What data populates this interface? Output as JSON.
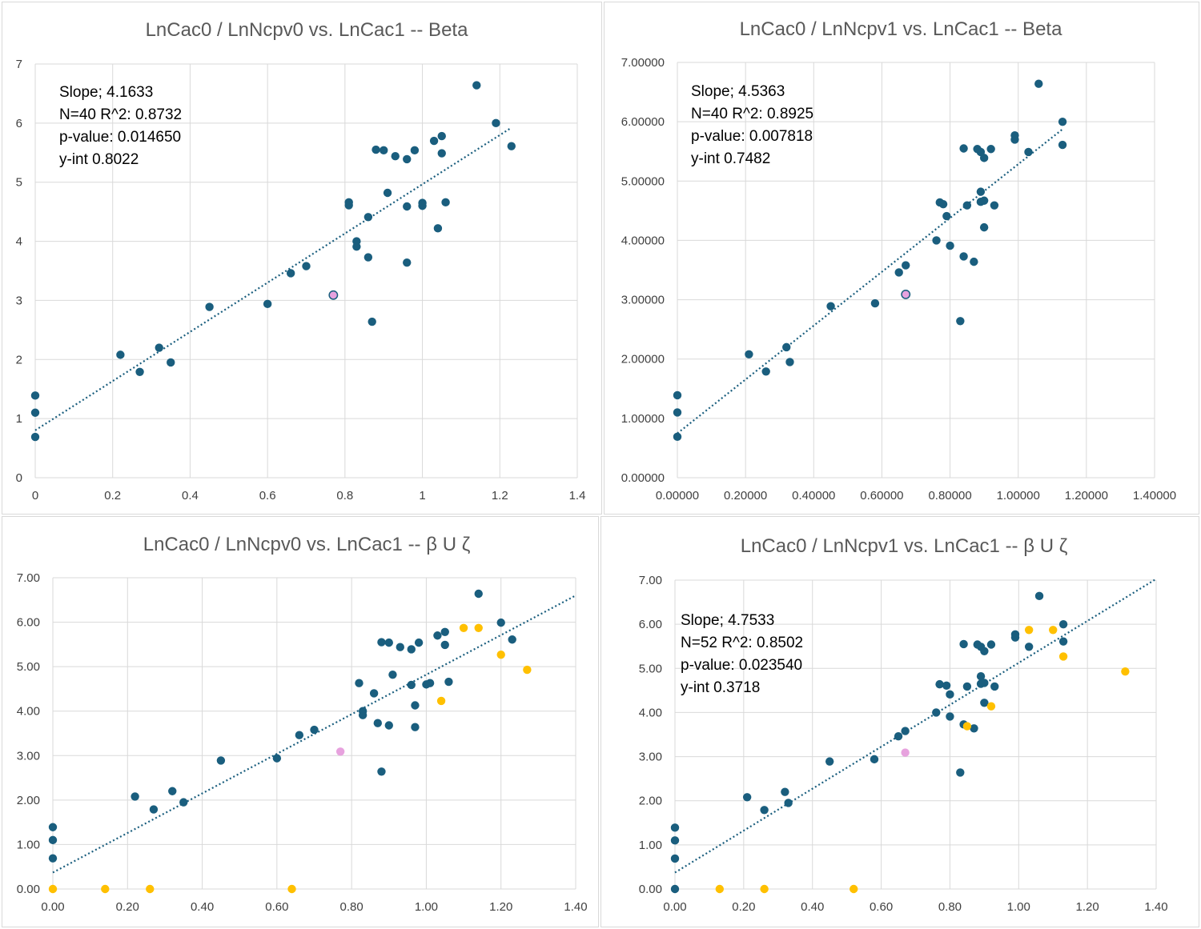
{
  "colors": {
    "main": "#1a5e7e",
    "excluded": "#ffc000",
    "highlight": "#e7a2de",
    "trend": "#1a5e7e",
    "grid": "#d9d9d9"
  },
  "chart_data": [
    {
      "type": "scatter",
      "title": "LnCac0 / LnNcpv0 vs. LnCac1 -- Beta",
      "xlim": [
        0,
        1.4
      ],
      "ylim": [
        0,
        7
      ],
      "x_ticks": [
        "0",
        "0.2",
        "0.4",
        "0.6",
        "0.8",
        "1",
        "1.2",
        "1.4"
      ],
      "y_ticks": [
        "0",
        "1",
        "2",
        "3",
        "4",
        "5",
        "6",
        "7"
      ],
      "grid": true,
      "annotations": [
        "Slope; 4.1633",
        "N=40 R^2: 0.8732",
        "p-value: 0.014650",
        "y-int 0.8022"
      ],
      "trendline": {
        "intercept": 0.8022,
        "slope": 4.1633,
        "x_range": [
          0,
          1.23
        ]
      },
      "series": [
        {
          "points": [
            [
              0,
              0.69
            ],
            [
              0,
              1.1
            ],
            [
              0,
              1.39
            ],
            [
              0.22,
              2.08
            ],
            [
              0.27,
              1.79
            ],
            [
              0.32,
              2.2
            ],
            [
              0.35,
              1.95
            ],
            [
              0.45,
              2.89
            ],
            [
              0.6,
              2.94
            ],
            [
              0.66,
              3.46
            ],
            [
              0.7,
              3.58
            ],
            [
              0.81,
              4.66
            ],
            [
              0.81,
              4.61
            ],
            [
              0.83,
              4.0
            ],
            [
              0.83,
              3.91
            ],
            [
              0.86,
              4.41
            ],
            [
              0.86,
              3.73
            ],
            [
              0.87,
              2.64
            ],
            [
              0.88,
              5.55
            ],
            [
              0.9,
              5.54
            ],
            [
              0.91,
              4.82
            ],
            [
              0.93,
              5.44
            ],
            [
              0.96,
              5.39
            ],
            [
              0.96,
              4.59
            ],
            [
              0.96,
              3.64
            ],
            [
              0.98,
              5.54
            ],
            [
              1.0,
              4.6
            ],
            [
              1.0,
              4.65
            ],
            [
              1.03,
              5.7
            ],
            [
              1.04,
              4.22
            ],
            [
              1.05,
              5.49
            ],
            [
              1.05,
              5.78
            ],
            [
              1.06,
              4.66
            ],
            [
              1.14,
              6.64
            ],
            [
              1.19,
              6.0
            ],
            [
              1.23,
              5.61
            ]
          ]
        },
        {
          "points": [
            [
              0.77,
              3.09
            ]
          ]
        }
      ]
    },
    {
      "type": "scatter",
      "title": "LnCac0 / LnNcpv1 vs. LnCac1 -- Beta",
      "xlim": [
        0,
        1.4
      ],
      "ylim": [
        0,
        7
      ],
      "x_ticks": [
        "0.00000",
        "0.20000",
        "0.40000",
        "0.60000",
        "0.80000",
        "1.00000",
        "1.20000",
        "1.40000"
      ],
      "y_ticks": [
        "0.00000",
        "1.00000",
        "2.00000",
        "3.00000",
        "4.00000",
        "5.00000",
        "6.00000",
        "7.00000"
      ],
      "grid": true,
      "annotations": [
        "Slope; 4.5363",
        "N=40 R^2: 0.8925",
        "p-value: 0.007818",
        "y-int 0.7482"
      ],
      "trendline": {
        "intercept": 0.7482,
        "slope": 4.5363,
        "x_range": [
          0,
          1.13
        ]
      },
      "series": [
        {
          "points": [
            [
              0,
              0.69
            ],
            [
              0,
              1.1
            ],
            [
              0,
              1.39
            ],
            [
              0.21,
              2.08
            ],
            [
              0.26,
              1.79
            ],
            [
              0.32,
              2.2
            ],
            [
              0.33,
              1.95
            ],
            [
              0.45,
              2.89
            ],
            [
              0.58,
              2.94
            ],
            [
              0.65,
              3.46
            ],
            [
              0.67,
              3.58
            ],
            [
              0.76,
              4.0
            ],
            [
              0.77,
              4.64
            ],
            [
              0.78,
              4.61
            ],
            [
              0.79,
              4.41
            ],
            [
              0.8,
              3.91
            ],
            [
              0.83,
              2.64
            ],
            [
              0.84,
              3.73
            ],
            [
              0.84,
              5.55
            ],
            [
              0.85,
              4.59
            ],
            [
              0.87,
              3.64
            ],
            [
              0.88,
              5.54
            ],
            [
              0.89,
              5.49
            ],
            [
              0.89,
              4.82
            ],
            [
              0.89,
              4.65
            ],
            [
              0.9,
              5.39
            ],
            [
              0.9,
              4.22
            ],
            [
              0.9,
              4.67
            ],
            [
              0.92,
              5.54
            ],
            [
              0.93,
              4.59
            ],
            [
              0.99,
              5.7
            ],
            [
              0.99,
              5.77
            ],
            [
              1.03,
              5.49
            ],
            [
              1.06,
              6.64
            ],
            [
              1.13,
              6.0
            ],
            [
              1.13,
              5.61
            ]
          ]
        },
        {
          "points": [
            [
              0.67,
              3.09
            ]
          ]
        }
      ]
    },
    {
      "type": "scatter",
      "title": "LnCac0 / LnNcpv0 vs. LnCac1 --   β U ζ",
      "xlim": [
        0,
        1.4
      ],
      "ylim": [
        0,
        7
      ],
      "x_ticks": [
        "0.00",
        "0.20",
        "0.40",
        "0.60",
        "0.80",
        "1.00",
        "1.20",
        "1.40"
      ],
      "y_ticks": [
        "0.00",
        "1.00",
        "2.00",
        "3.00",
        "4.00",
        "5.00",
        "6.00",
        "7.00"
      ],
      "grid": true,
      "annotations": [],
      "trendline": {
        "intercept": 0.37,
        "slope": 4.45,
        "x_range": [
          0,
          1.4
        ]
      },
      "series": [
        {
          "points": [
            [
              0,
              0.69
            ],
            [
              0,
              1.1
            ],
            [
              0,
              1.39
            ],
            [
              0.22,
              2.08
            ],
            [
              0.27,
              1.79
            ],
            [
              0.32,
              2.2
            ],
            [
              0.35,
              1.95
            ],
            [
              0.45,
              2.89
            ],
            [
              0.6,
              2.94
            ],
            [
              0.66,
              3.46
            ],
            [
              0.7,
              3.58
            ],
            [
              0.82,
              4.63
            ],
            [
              0.83,
              4.0
            ],
            [
              0.83,
              3.91
            ],
            [
              0.86,
              4.4
            ],
            [
              0.87,
              3.73
            ],
            [
              0.88,
              2.64
            ],
            [
              0.88,
              5.55
            ],
            [
              0.9,
              5.54
            ],
            [
              0.9,
              3.68
            ],
            [
              0.91,
              4.82
            ],
            [
              0.93,
              5.44
            ],
            [
              0.96,
              5.39
            ],
            [
              0.96,
              4.59
            ],
            [
              0.97,
              3.64
            ],
            [
              0.97,
              4.13
            ],
            [
              0.98,
              5.54
            ],
            [
              1.0,
              4.6
            ],
            [
              1.01,
              4.63
            ],
            [
              1.03,
              5.7
            ],
            [
              1.05,
              5.49
            ],
            [
              1.05,
              5.78
            ],
            [
              1.06,
              4.66
            ],
            [
              1.14,
              6.64
            ],
            [
              1.2,
              5.99
            ],
            [
              1.23,
              5.61
            ]
          ]
        },
        {
          "points": [
            [
              0,
              0
            ],
            [
              0.14,
              0
            ],
            [
              0.26,
              0
            ],
            [
              0.64,
              0
            ],
            [
              1.04,
              4.23
            ],
            [
              1.1,
              5.87
            ],
            [
              1.14,
              5.87
            ],
            [
              1.2,
              5.27
            ],
            [
              1.27,
              4.93
            ]
          ]
        },
        {
          "points": [
            [
              0.77,
              3.09
            ]
          ]
        }
      ]
    },
    {
      "type": "scatter",
      "title": "LnCac0 / LnNcpv1 vs. LnCac1 -- β U ζ",
      "xlim": [
        0,
        1.4
      ],
      "ylim": [
        0,
        7
      ],
      "x_ticks": [
        "0.00",
        "0.20",
        "0.40",
        "0.60",
        "0.80",
        "1.00",
        "1.20",
        "1.40"
      ],
      "y_ticks": [
        "0.00",
        "1.00",
        "2.00",
        "3.00",
        "4.00",
        "5.00",
        "6.00",
        "7.00"
      ],
      "grid": true,
      "annotations": [
        "Slope; 4.7533",
        "N=52 R^2: 0.8502",
        "p-value: 0.023540",
        "y-int 0.3718"
      ],
      "trendline": {
        "intercept": 0.3718,
        "slope": 4.7533,
        "x_range": [
          0,
          1.4
        ]
      },
      "series": [
        {
          "points": [
            [
              0,
              0.69
            ],
            [
              0,
              1.1
            ],
            [
              0,
              1.39
            ],
            [
              0,
              0
            ],
            [
              0.21,
              2.08
            ],
            [
              0.26,
              1.79
            ],
            [
              0.32,
              2.2
            ],
            [
              0.33,
              1.95
            ],
            [
              0.45,
              2.89
            ],
            [
              0.58,
              2.94
            ],
            [
              0.65,
              3.46
            ],
            [
              0.67,
              3.58
            ],
            [
              0.76,
              4.0
            ],
            [
              0.77,
              4.64
            ],
            [
              0.79,
              4.61
            ],
            [
              0.8,
              4.41
            ],
            [
              0.8,
              3.91
            ],
            [
              0.83,
              2.64
            ],
            [
              0.84,
              3.73
            ],
            [
              0.84,
              5.55
            ],
            [
              0.85,
              4.59
            ],
            [
              0.87,
              3.64
            ],
            [
              0.88,
              5.54
            ],
            [
              0.89,
              5.49
            ],
            [
              0.89,
              4.82
            ],
            [
              0.89,
              4.65
            ],
            [
              0.9,
              5.39
            ],
            [
              0.9,
              4.22
            ],
            [
              0.9,
              4.67
            ],
            [
              0.92,
              5.54
            ],
            [
              0.93,
              4.59
            ],
            [
              0.99,
              5.7
            ],
            [
              0.99,
              5.77
            ],
            [
              1.03,
              5.49
            ],
            [
              1.06,
              6.64
            ],
            [
              1.13,
              6.0
            ],
            [
              1.13,
              5.61
            ]
          ]
        },
        {
          "points": [
            [
              0.13,
              0
            ],
            [
              0.26,
              0
            ],
            [
              0.52,
              0
            ],
            [
              0.85,
              3.69
            ],
            [
              0.92,
              4.14
            ],
            [
              1.03,
              5.87
            ],
            [
              1.1,
              5.87
            ],
            [
              1.13,
              5.27
            ],
            [
              1.31,
              4.93
            ]
          ]
        },
        {
          "points": [
            [
              0.67,
              3.09
            ]
          ]
        }
      ]
    }
  ]
}
